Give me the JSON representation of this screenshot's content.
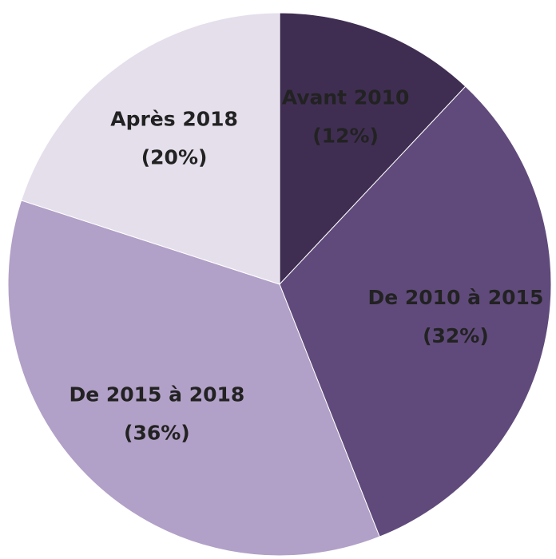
{
  "chart_data": {
    "type": "pie",
    "categories": [
      "Avant 2010",
      "De 2010 à 2015",
      "De 2015 à 2018",
      "Après 2018"
    ],
    "values": [
      12,
      32,
      36,
      20
    ],
    "value_labels": [
      "(12%)",
      "(32%)",
      "(36%)",
      "(20%)"
    ],
    "colors": [
      "#3f2e52",
      "#604a7b",
      "#b1a0c7",
      "#e5dfec"
    ]
  }
}
